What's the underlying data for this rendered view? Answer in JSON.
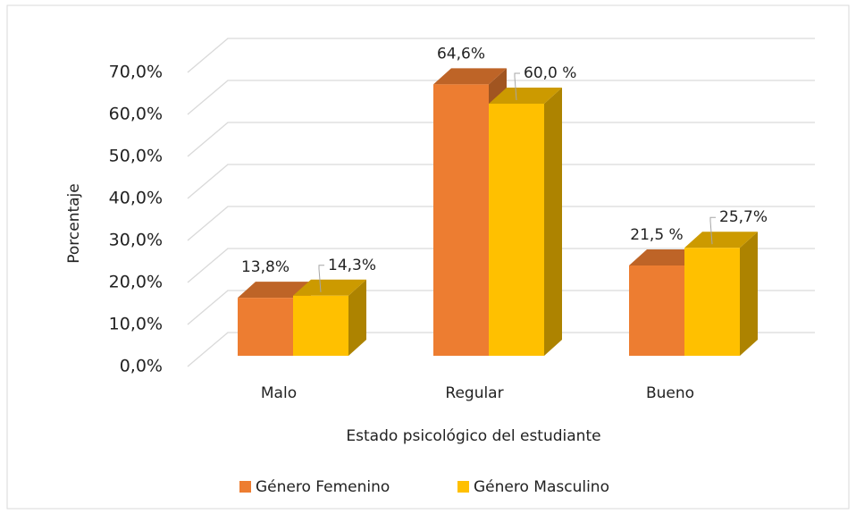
{
  "chart_data": {
    "type": "bar3d",
    "xlabel": "Estado psicológico del estudiante",
    "ylabel": "Porcentaje",
    "categories": [
      "Malo",
      "Regular",
      "Bueno"
    ],
    "series": [
      {
        "name": "Género Femenino",
        "color": "#ED7D31",
        "values": [
          13.8,
          64.6,
          21.5
        ],
        "value_labels": [
          "13,8%",
          "64,6%",
          "21,5 %"
        ]
      },
      {
        "name": "Género Masculino",
        "color": "#FFC000",
        "values": [
          14.3,
          60.0,
          25.7
        ],
        "value_labels": [
          "14,3%",
          "60,0 %",
          "25,7%"
        ]
      }
    ],
    "ylim": [
      0,
      70
    ],
    "yticks": [
      {
        "value": 0,
        "label": "0,0%"
      },
      {
        "value": 10,
        "label": "10,0%"
      },
      {
        "value": 20,
        "label": "20,0%"
      },
      {
        "value": 30,
        "label": "30,0%"
      },
      {
        "value": 40,
        "label": "40,0%"
      },
      {
        "value": 50,
        "label": "50,0%"
      },
      {
        "value": 60,
        "label": "60,0%"
      },
      {
        "value": 70,
        "label": "70,0%"
      }
    ],
    "grid": true,
    "legend": "bottom"
  }
}
